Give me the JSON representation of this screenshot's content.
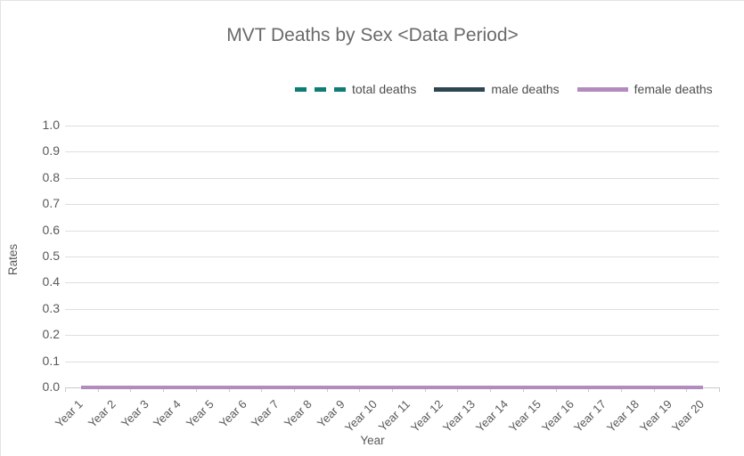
{
  "title": "MVT Deaths by Sex <Data Period>",
  "legend": [
    {
      "label": "total deaths",
      "color": "#0e7d76",
      "style": "dashed"
    },
    {
      "label": "male deaths",
      "color": "#2e4552",
      "style": "solid"
    },
    {
      "label": "female deaths",
      "color": "#b28cbd",
      "style": "solid"
    }
  ],
  "colors": {
    "title_text": "#6a6a6a",
    "axis_text": "#595959",
    "gridline": "#dedede",
    "axis_line": "#c9c9c9",
    "total_deaths": "#0e7d76",
    "male_deaths": "#2e4552",
    "female_deaths": "#b28cbd"
  },
  "chart_data": {
    "type": "line",
    "title": "MVT Deaths by Sex <Data Period>",
    "xlabel": "Year",
    "ylabel": "Rates",
    "ylim": [
      0.0,
      1.0
    ],
    "ytick_step": 0.1,
    "grid": true,
    "legend_position": "top",
    "yticks": [
      "1.0",
      "0.9",
      "0.8",
      "0.7",
      "0.6",
      "0.5",
      "0.4",
      "0.3",
      "0.2",
      "0.1",
      "0.0"
    ],
    "categories": [
      "Year 1",
      "Year 2",
      "Year 3",
      "Year 4",
      "Year 5",
      "Year 6",
      "Year 7",
      "Year 8",
      "Year 9",
      "Year 10",
      "Year 11",
      "Year 12",
      "Year 13",
      "Year 14",
      "Year 15",
      "Year 16",
      "Year 17",
      "Year 18",
      "Year 19",
      "Year 20"
    ],
    "series": [
      {
        "name": "total deaths",
        "color": "#0e7d76",
        "dash": true,
        "values": [
          0,
          0,
          0,
          0,
          0,
          0,
          0,
          0,
          0,
          0,
          0,
          0,
          0,
          0,
          0,
          0,
          0,
          0,
          0,
          0
        ]
      },
      {
        "name": "male deaths",
        "color": "#2e4552",
        "dash": false,
        "values": [
          0,
          0,
          0,
          0,
          0,
          0,
          0,
          0,
          0,
          0,
          0,
          0,
          0,
          0,
          0,
          0,
          0,
          0,
          0,
          0
        ]
      },
      {
        "name": "female deaths",
        "color": "#b28cbd",
        "dash": false,
        "values": [
          0,
          0,
          0,
          0,
          0,
          0,
          0,
          0,
          0,
          0,
          0,
          0,
          0,
          0,
          0,
          0,
          0,
          0,
          0,
          0
        ]
      }
    ]
  }
}
